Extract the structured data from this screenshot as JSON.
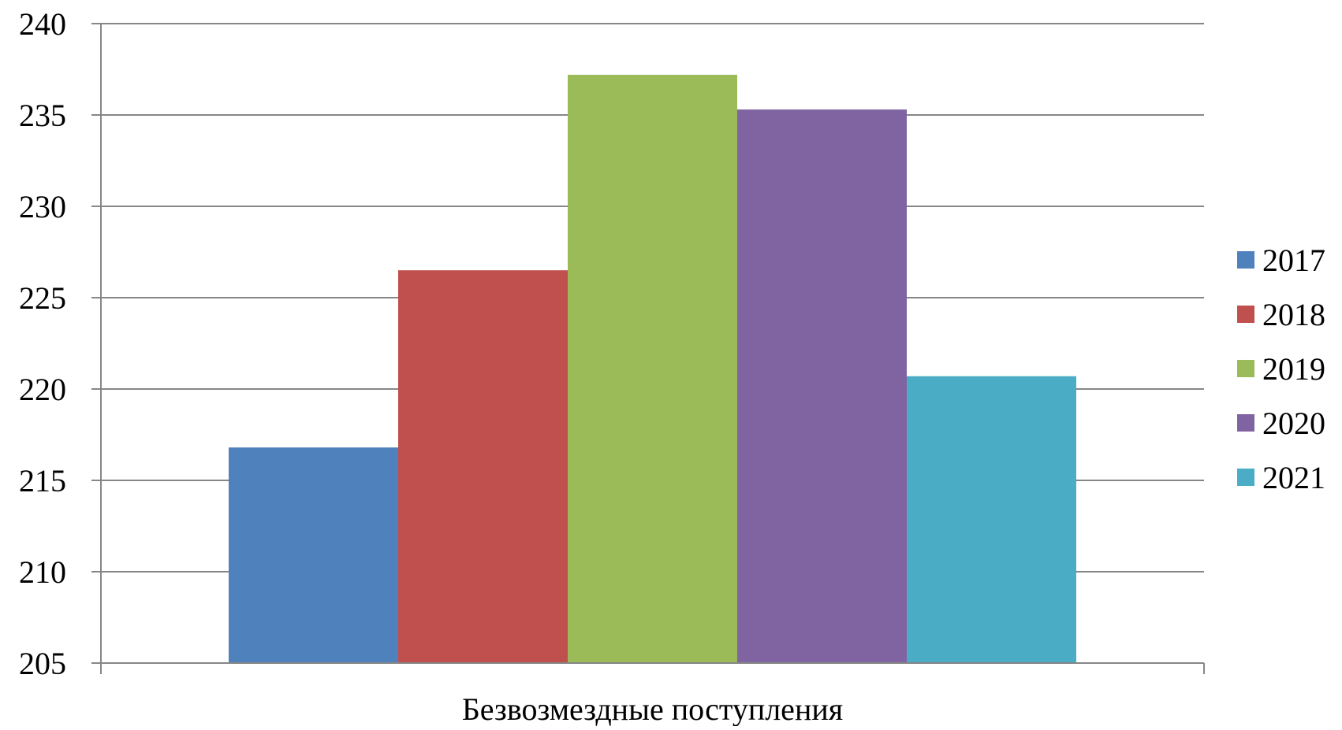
{
  "chart_data": {
    "type": "bar",
    "categories": [
      "Безвозмездные поступления"
    ],
    "series": [
      {
        "name": "2017",
        "values": [
          216.8
        ],
        "color": "#4F81BD"
      },
      {
        "name": "2018",
        "values": [
          226.5
        ],
        "color": "#C0504D"
      },
      {
        "name": "2019",
        "values": [
          237.2
        ],
        "color": "#9BBB59"
      },
      {
        "name": "2020",
        "values": [
          235.3
        ],
        "color": "#8064A2"
      },
      {
        "name": "2021",
        "values": [
          220.7
        ],
        "color": "#4BACC6"
      }
    ],
    "ylim": [
      205,
      240
    ],
    "yticks": [
      "205",
      "210",
      "215",
      "220",
      "225",
      "230",
      "235",
      "240"
    ],
    "grid": true,
    "legend_position": "right"
  }
}
